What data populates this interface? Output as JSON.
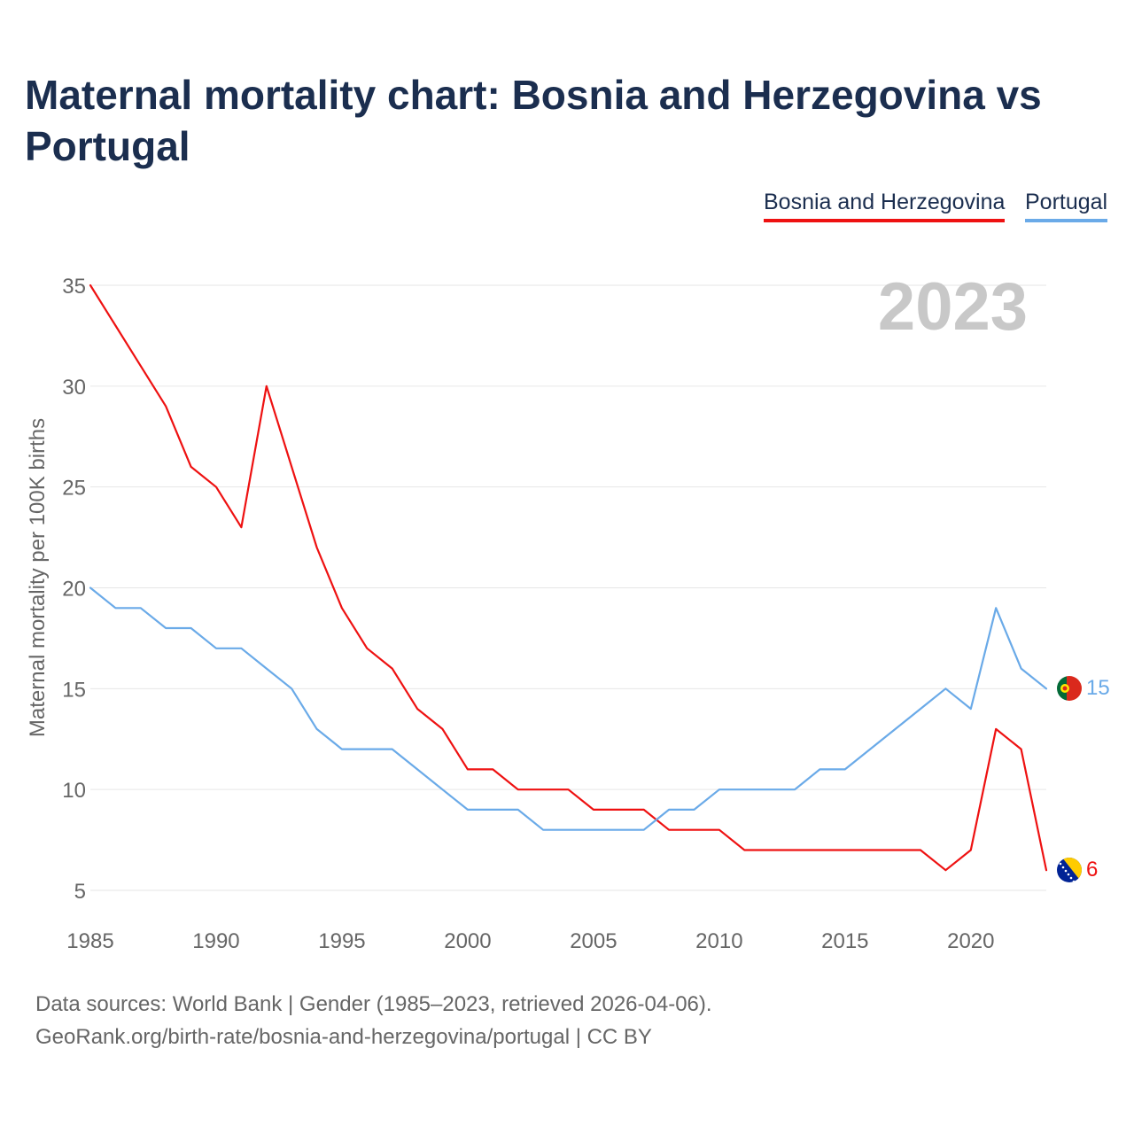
{
  "title": "Maternal mortality chart: Bosnia and Herzegovina vs Portugal",
  "legend": [
    {
      "name": "Bosnia and Herzegovina",
      "color": "#ee1111"
    },
    {
      "name": "Portugal",
      "color": "#6aaae8"
    }
  ],
  "year_watermark": "2023",
  "footer": {
    "line1": "Data sources: World Bank | Gender (1985–2023, retrieved 2026-04-06).",
    "line2": "GeoRank.org/birth-rate/bosnia-and-herzegovina/portugal | CC BY"
  },
  "chart_data": {
    "type": "line",
    "title": "Maternal mortality chart: Bosnia and Herzegovina vs Portugal",
    "xlabel": "",
    "ylabel": "Maternal mortality per 100K births",
    "x": [
      1985,
      1986,
      1987,
      1988,
      1989,
      1990,
      1991,
      1992,
      1993,
      1994,
      1995,
      1996,
      1997,
      1998,
      1999,
      2000,
      2001,
      2002,
      2003,
      2004,
      2005,
      2006,
      2007,
      2008,
      2009,
      2010,
      2011,
      2012,
      2013,
      2014,
      2015,
      2016,
      2017,
      2018,
      2019,
      2020,
      2021,
      2022,
      2023
    ],
    "xlim": [
      1985,
      2023
    ],
    "ylim": [
      5,
      35
    ],
    "x_ticks": [
      1985,
      1990,
      1995,
      2000,
      2005,
      2010,
      2015,
      2020
    ],
    "y_ticks": [
      5,
      10,
      15,
      20,
      25,
      30,
      35
    ],
    "grid": true,
    "legend_position": "top-right",
    "series": [
      {
        "name": "Bosnia and Herzegovina",
        "color": "#ee1111",
        "end_label": "6",
        "values": [
          35,
          33,
          31,
          29,
          26,
          25,
          23,
          30,
          26,
          22,
          19,
          17,
          16,
          14,
          13,
          11,
          11,
          10,
          10,
          10,
          9,
          9,
          9,
          8,
          8,
          8,
          7,
          7,
          7,
          7,
          7,
          7,
          7,
          7,
          6,
          7,
          13,
          12,
          6
        ]
      },
      {
        "name": "Portugal",
        "color": "#6aaae8",
        "end_label": "15",
        "values": [
          20,
          19,
          19,
          18,
          18,
          17,
          17,
          16,
          15,
          13,
          12,
          12,
          12,
          11,
          10,
          9,
          9,
          9,
          8,
          8,
          8,
          8,
          8,
          9,
          9,
          10,
          10,
          10,
          10,
          11,
          11,
          12,
          13,
          14,
          15,
          14,
          19,
          16,
          15
        ]
      }
    ]
  }
}
